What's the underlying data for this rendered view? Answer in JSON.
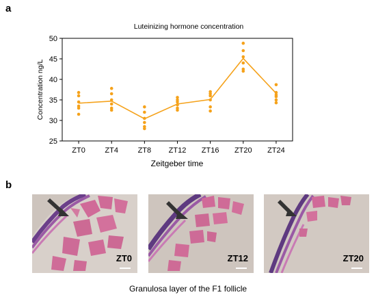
{
  "panels": {
    "a_label": "a",
    "b_label": "b"
  },
  "chart_data": {
    "type": "scatter",
    "title": "Luteinizing hormone concentration",
    "xlabel": "Zeitgeber time",
    "ylabel": "Concentration ng/L",
    "categories": [
      "ZT0",
      "ZT4",
      "ZT8",
      "ZT12",
      "ZT16",
      "ZT20",
      "ZT24"
    ],
    "ylim": [
      25,
      50
    ],
    "yticks": [
      25,
      30,
      35,
      40,
      45,
      50
    ],
    "points": [
      [
        31.5,
        33.0,
        33.5,
        34.5,
        36.0,
        36.8
      ],
      [
        32.5,
        33.0,
        34.0,
        35.0,
        36.5,
        37.8
      ],
      [
        28.0,
        28.5,
        29.5,
        30.5,
        32.0,
        33.3
      ],
      [
        32.5,
        33.0,
        33.8,
        34.5,
        35.0,
        35.6
      ],
      [
        32.3,
        33.3,
        35.0,
        36.0,
        36.5,
        37.0
      ],
      [
        42.0,
        42.5,
        44.0,
        45.5,
        47.0,
        48.8
      ],
      [
        34.3,
        35.0,
        35.8,
        36.2,
        36.8,
        38.7
      ]
    ],
    "means": [
      34.2,
      34.7,
      30.4,
      34.0,
      35.1,
      45.1,
      36.6
    ],
    "color": "#f5a21b",
    "grid": false
  },
  "figure_b": {
    "caption": "Granulosa layer of the F1 follicle",
    "images": [
      {
        "label": "ZT0"
      },
      {
        "label": "ZT12"
      },
      {
        "label": "ZT20"
      }
    ]
  }
}
